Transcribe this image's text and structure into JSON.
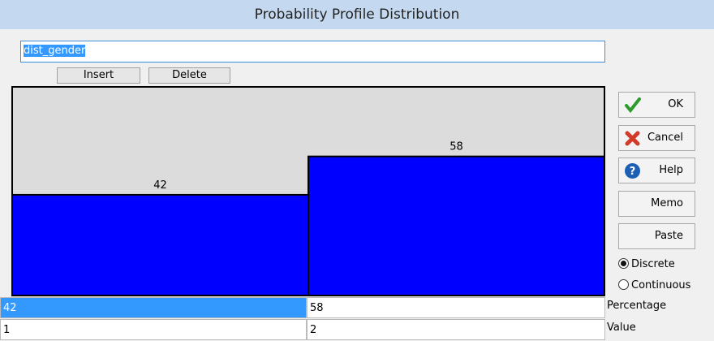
{
  "title": "Probability Profile Distribution",
  "name_field": "dist_gender",
  "toolbar": {
    "insert": "Insert",
    "delete": "Delete"
  },
  "chart_data": {
    "type": "bar",
    "categories": [
      1,
      2
    ],
    "values": [
      42,
      58
    ],
    "color": "#0000ff"
  },
  "side_buttons": [
    "OK",
    "Cancel",
    "Help",
    "Memo",
    "Paste"
  ],
  "options": {
    "choices": [
      "Discrete",
      "Continuous"
    ],
    "selected": 0
  },
  "table": {
    "row_labels": [
      "Percentage",
      "Value"
    ]
  }
}
